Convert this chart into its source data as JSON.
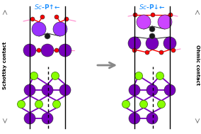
{
  "bg_color": "#ffffff",
  "line_color": "#000000",
  "purple_large": "#9933FF",
  "purple_bright": "#CC44FF",
  "purple_mid": "#7700BB",
  "red_color": "#FF0000",
  "green_color": "#88FF00",
  "pink_color": "#FF88CC",
  "dark_color": "#1a1a1a",
  "title_color": "#1E90FF",
  "gray_arrow": "#888888",
  "label_left": "Schottky contact",
  "label_right": "Ohmic contact"
}
